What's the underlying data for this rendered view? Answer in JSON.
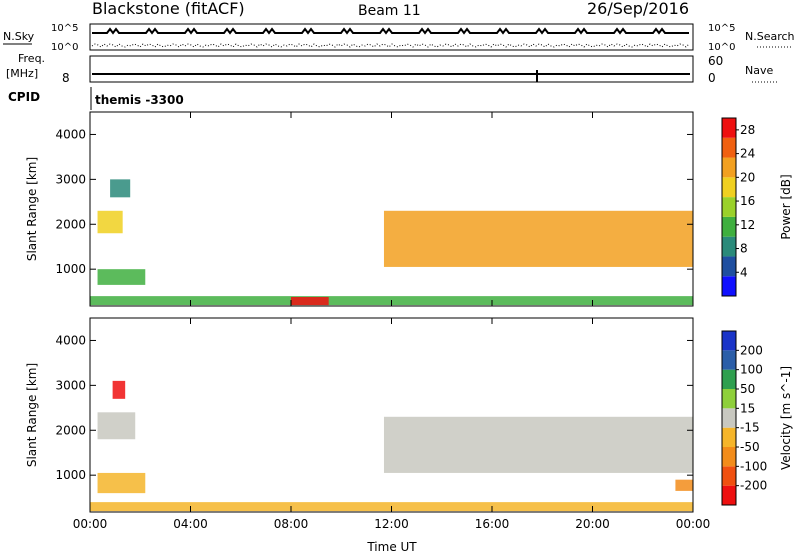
{
  "header": {
    "station": "Blackstone (fitACF)",
    "beam": "Beam 11",
    "date": "26/Sep/2016"
  },
  "aux_panels": {
    "nsky_label": "N.Sky",
    "nsky_ticks": [
      "10^5",
      "10^0"
    ],
    "nsearch_label": "N.Search",
    "nsearch_ticks": [
      "10^5",
      "10^0"
    ],
    "freq_label_line1": "Freq.",
    "freq_label_line2": "[MHz]",
    "freq_ticks": [
      "8"
    ],
    "nave_label": "Nave",
    "nave_ticks": [
      "60",
      "0"
    ],
    "cpid_label": "CPID",
    "cpid_value": "themis -3300"
  },
  "colors": {
    "power": [
      "#1010ff",
      "#1f4fa0",
      "#2a8a7a",
      "#3faf3f",
      "#9ad12a",
      "#f0d020",
      "#f2a020",
      "#f06010",
      "#ee1010"
    ],
    "velocity": [
      "#ee1010",
      "#f05010",
      "#f28c1a",
      "#f5b52a",
      "#c8c8c0",
      "#8ecf3a",
      "#2f9f4f",
      "#2b5ea8",
      "#1a34c8"
    ]
  },
  "chart_data": [
    {
      "type": "heatmap",
      "title": "",
      "xlabel": "Time UT",
      "ylabel": "Slant Range [km]",
      "x_ticks": [
        "00:00",
        "04:00",
        "08:00",
        "12:00",
        "16:00",
        "20:00",
        "00:00"
      ],
      "y_ticks": [
        "1000",
        "2000",
        "3000",
        "4000"
      ],
      "xlim_hours": [
        0,
        24
      ],
      "ylim_km": [
        180,
        4500
      ],
      "colorbar_label": "Power [dB]",
      "colorbar_ticks": [
        "4",
        "8",
        "12",
        "16",
        "20",
        "24",
        "28"
      ],
      "colorbar_range": [
        0,
        30
      ],
      "regions": [
        {
          "t0": 0.3,
          "t1": 1.3,
          "r0": 1800,
          "r1": 2300,
          "value": 18
        },
        {
          "t0": 0.3,
          "t1": 2.2,
          "r0": 650,
          "r1": 1000,
          "value": 10
        },
        {
          "t0": 0.8,
          "t1": 1.6,
          "r0": 2600,
          "r1": 3000,
          "value": 8
        },
        {
          "t0": 11.7,
          "t1": 24.0,
          "r0": 1050,
          "r1": 2300,
          "value": 20
        },
        {
          "t0": 0.0,
          "t1": 24.0,
          "r0": 200,
          "r1": 400,
          "value": 12
        },
        {
          "t0": 8.0,
          "t1": 9.5,
          "r0": 200,
          "r1": 380,
          "value": 28
        }
      ]
    },
    {
      "type": "heatmap",
      "title": "",
      "xlabel": "Time UT",
      "ylabel": "Slant Range [km]",
      "x_ticks": [
        "00:00",
        "04:00",
        "08:00",
        "12:00",
        "16:00",
        "20:00",
        "00:00"
      ],
      "y_ticks": [
        "1000",
        "2000",
        "3000",
        "4000"
      ],
      "xlim_hours": [
        0,
        24
      ],
      "ylim_km": [
        180,
        4500
      ],
      "colorbar_label": "Velocity [m s^-1]",
      "colorbar_ticks": [
        "200",
        "100",
        "50",
        "15",
        "-15",
        "-50",
        "-100",
        "-200"
      ],
      "colorbar_range": [
        -250,
        250
      ],
      "regions": [
        {
          "t0": 0.3,
          "t1": 1.8,
          "r0": 1800,
          "r1": 2400,
          "value": 0
        },
        {
          "t0": 0.3,
          "t1": 2.2,
          "r0": 600,
          "r1": 1050,
          "value": -60
        },
        {
          "t0": 0.9,
          "t1": 1.4,
          "r0": 2700,
          "r1": 3100,
          "value": -200
        },
        {
          "t0": 11.7,
          "t1": 24.0,
          "r0": 1050,
          "r1": 2300,
          "value": 0
        },
        {
          "t0": 0.0,
          "t1": 24.0,
          "r0": 200,
          "r1": 400,
          "value": -60
        },
        {
          "t0": 23.3,
          "t1": 24.0,
          "r0": 650,
          "r1": 900,
          "value": -100
        }
      ]
    }
  ]
}
